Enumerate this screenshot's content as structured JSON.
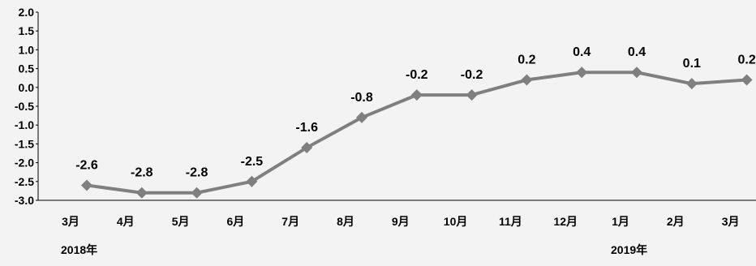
{
  "chart_data": {
    "type": "line",
    "categories": [
      "3月",
      "4月",
      "5月",
      "6月",
      "7月",
      "8月",
      "9月",
      "10月",
      "11月",
      "12月",
      "1月",
      "2月",
      "3月"
    ],
    "series": [
      {
        "values": [
          -2.6,
          -2.8,
          -2.8,
          -2.5,
          -1.6,
          -0.8,
          -0.2,
          -0.2,
          0.2,
          0.4,
          0.4,
          0.1,
          0.2
        ],
        "labels": [
          "-2.6",
          "-2.8",
          "-2.8",
          "-2.5",
          "-1.6",
          "-0.8",
          "-0.2",
          "-0.2",
          "0.2",
          "0.4",
          "0.4",
          "0.1",
          "0.2"
        ]
      }
    ],
    "yticks": [
      "2.0",
      "1.5",
      "1.0",
      "0.5",
      "0.0",
      "-0.5",
      "-1.0",
      "-1.5",
      "-2.0",
      "-2.5",
      "-3.0"
    ],
    "ylim": [
      -3.0,
      2.0
    ],
    "year_labels": [
      {
        "text": "2018年",
        "category_index": 0
      },
      {
        "text": "2019年",
        "category_index": 10
      }
    ],
    "grid": false,
    "line_color": "#7f7f7f",
    "marker": "diamond"
  }
}
